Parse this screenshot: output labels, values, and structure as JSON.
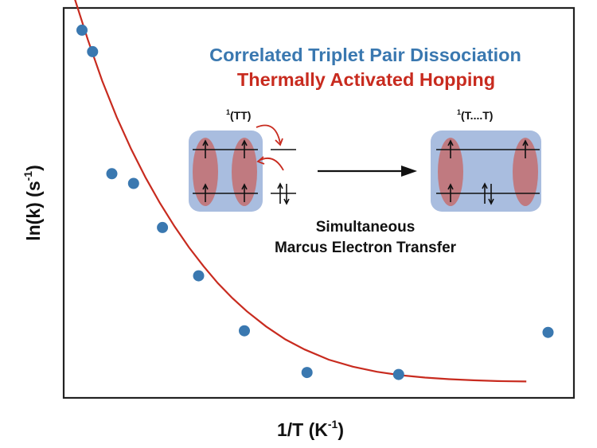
{
  "chart_data": {
    "type": "scatter",
    "xlabel": "1/T (K",
    "xlabel_sup": "-1",
    "xlabel_close": ")",
    "ylabel": "ln(k) (s",
    "ylabel_sup": "-1",
    "ylabel_close": ")",
    "xlim": [
      0,
      100
    ],
    "ylim": [
      0,
      100
    ],
    "grid": false,
    "ticks": false,
    "series": [
      {
        "name": "Correlated Triplet Pair Dissociation",
        "kind": "points",
        "color": "#3a78b0",
        "x": [
          3.8,
          6.0,
          10.0,
          14.5,
          20.5,
          28.0,
          37.5,
          50.5,
          69.5,
          100.5
        ],
        "y": [
          94.3,
          88.8,
          57.5,
          55.0,
          43.7,
          31.3,
          17.2,
          6.5,
          6.0,
          16.8
        ]
      },
      {
        "name": "Thermally Activated Hopping",
        "kind": "fit-line",
        "color": "#c82b1f",
        "x": [
          2,
          5,
          8,
          11,
          14,
          17,
          20,
          23,
          26,
          29,
          32,
          35,
          38,
          42,
          46,
          50,
          55,
          60,
          65,
          70,
          75,
          80,
          85,
          90,
          96
        ],
        "y": [
          103.5,
          91.9,
          81.3,
          72.0,
          63.8,
          56.5,
          49.9,
          44.0,
          38.6,
          33.8,
          29.4,
          25.6,
          22.2,
          18.3,
          15.0,
          12.4,
          9.8,
          8.0,
          6.7,
          5.8,
          5.2,
          4.8,
          4.5,
          4.3,
          4.2
        ]
      }
    ]
  },
  "inset": {
    "left_state": "(TT)",
    "left_state_sup": "1",
    "right_state": "(T....T)",
    "right_state_sup": "1",
    "caption_line1": "Simultaneous",
    "caption_line2": "Marcus Electron Transfer",
    "box_color": "#a9bddf",
    "lobe_color": "#c07a80",
    "arrow_color": "#c82b1f"
  }
}
